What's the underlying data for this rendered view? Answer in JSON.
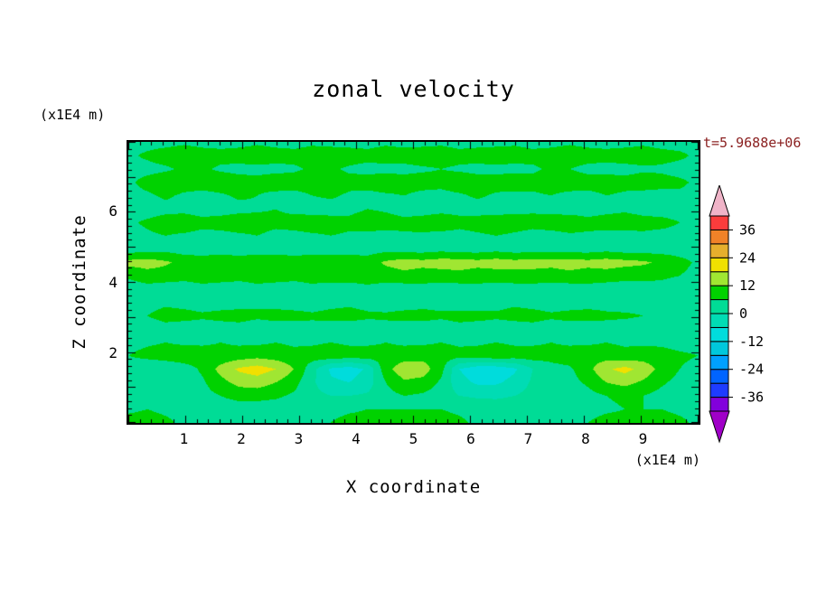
{
  "chart_data": {
    "type": "heatmap",
    "title": "zonal velocity",
    "xlabel": "X coordinate",
    "ylabel": "Z coordinate",
    "x_unit": "(x1E4 m)",
    "y_unit": "(x1E4 m)",
    "time_label": "t=5.9688e+06",
    "time_label_color": "#8b2121",
    "axis_color": "#000000",
    "xlim": [
      0,
      10
    ],
    "zlim": [
      0,
      8
    ],
    "xticks": [
      1,
      2,
      3,
      4,
      5,
      6,
      7,
      8,
      9
    ],
    "zticks": [
      2,
      4,
      6
    ],
    "minor_tick_step": 0.2,
    "levels": [
      -42,
      -36,
      -30,
      -24,
      -18,
      -12,
      -6,
      0,
      6,
      12,
      18,
      24,
      30,
      36,
      42
    ],
    "band_colors": [
      "#8200dc",
      "#1e3cff",
      "#0064ff",
      "#00a0ff",
      "#00c8dc",
      "#00dcdc",
      "#00dcb4",
      "#00dc96",
      "#00d200",
      "#a0e632",
      "#f0e000",
      "#e6af2d",
      "#f08228",
      "#fa3c3c"
    ],
    "below_color": "#a000c8",
    "above_color": "#f0b4c8",
    "cbar_labels": [
      36,
      24,
      12,
      0,
      -12,
      -24,
      -36
    ],
    "grid": [
      [
        4,
        4,
        4,
        5,
        4,
        4,
        4,
        5,
        4,
        4,
        5,
        4,
        4,
        4,
        5,
        4,
        4,
        5,
        4,
        4,
        4,
        5,
        4,
        4,
        5,
        4,
        4,
        4,
        5,
        4,
        4,
        4
      ],
      [
        5,
        7,
        9,
        10,
        9,
        8,
        9,
        10,
        9,
        8,
        9,
        10,
        9,
        8,
        9,
        9,
        10,
        9,
        8,
        9,
        10,
        9,
        8,
        9,
        10,
        9,
        8,
        9,
        9,
        8,
        7,
        5
      ],
      [
        4,
        4,
        5,
        7,
        7,
        5,
        4,
        4,
        4,
        5,
        7,
        7,
        5,
        4,
        4,
        4,
        5,
        6,
        5,
        4,
        4,
        4,
        5,
        7,
        6,
        4,
        4,
        4,
        5,
        5,
        4,
        4
      ],
      [
        5,
        8,
        10,
        9,
        9,
        10,
        9,
        8,
        10,
        9,
        9,
        10,
        8,
        9,
        10,
        9,
        9,
        8,
        10,
        9,
        9,
        10,
        8,
        9,
        10,
        9,
        9,
        8,
        9,
        8,
        7,
        5
      ],
      [
        4,
        5,
        7,
        5,
        4,
        5,
        7,
        6,
        4,
        4,
        6,
        7,
        5,
        4,
        5,
        6,
        4,
        4,
        5,
        7,
        5,
        4,
        5,
        6,
        4,
        4,
        6,
        5,
        4,
        4,
        5,
        4
      ],
      [
        3,
        3,
        4,
        4,
        3,
        3,
        4,
        5,
        6,
        4,
        3,
        3,
        4,
        6,
        5,
        3,
        3,
        4,
        4,
        3,
        3,
        4,
        5,
        4,
        3,
        3,
        4,
        5,
        4,
        3,
        3,
        3
      ],
      [
        5,
        7,
        9,
        10,
        8,
        9,
        10,
        9,
        8,
        9,
        10,
        9,
        8,
        10,
        9,
        8,
        9,
        10,
        8,
        9,
        10,
        9,
        8,
        9,
        10,
        8,
        9,
        9,
        8,
        8,
        6,
        5
      ],
      [
        4,
        5,
        6,
        5,
        4,
        4,
        5,
        6,
        4,
        4,
        5,
        6,
        5,
        4,
        4,
        5,
        5,
        4,
        4,
        5,
        6,
        5,
        4,
        4,
        5,
        5,
        4,
        4,
        5,
        4,
        4,
        3
      ],
      [
        3,
        3,
        4,
        3,
        3,
        4,
        3,
        3,
        4,
        3,
        3,
        4,
        3,
        3,
        4,
        3,
        3,
        4,
        3,
        3,
        4,
        3,
        3,
        4,
        3,
        3,
        4,
        3,
        3,
        3,
        3,
        3
      ],
      [
        14,
        15,
        13,
        10,
        9,
        9,
        9,
        10,
        9,
        9,
        10,
        9,
        10,
        9,
        13,
        15,
        14,
        15,
        15,
        14,
        15,
        14,
        15,
        14,
        15,
        14,
        15,
        14,
        13,
        11,
        8,
        5
      ],
      [
        7,
        9,
        9,
        8,
        9,
        9,
        8,
        9,
        9,
        8,
        9,
        9,
        9,
        10,
        9,
        10,
        9,
        9,
        10,
        9,
        9,
        10,
        9,
        9,
        10,
        9,
        9,
        8,
        8,
        7,
        6,
        4
      ],
      [
        3,
        4,
        3,
        3,
        4,
        3,
        3,
        4,
        3,
        3,
        4,
        3,
        3,
        4,
        3,
        3,
        4,
        3,
        3,
        4,
        3,
        3,
        4,
        3,
        3,
        4,
        3,
        3,
        3,
        4,
        3,
        3
      ],
      [
        3,
        4,
        5,
        4,
        3,
        3,
        4,
        5,
        4,
        3,
        3,
        4,
        5,
        4,
        3,
        3,
        4,
        4,
        3,
        3,
        4,
        5,
        4,
        3,
        3,
        4,
        4,
        3,
        3,
        3,
        3,
        3
      ],
      [
        4,
        6,
        8,
        8,
        7,
        8,
        8,
        7,
        8,
        8,
        7,
        8,
        8,
        7,
        7,
        8,
        8,
        7,
        8,
        8,
        7,
        8,
        8,
        7,
        8,
        8,
        7,
        7,
        6,
        6,
        5,
        4
      ],
      [
        3,
        3,
        4,
        3,
        3,
        3,
        4,
        3,
        3,
        3,
        4,
        3,
        3,
        3,
        4,
        3,
        3,
        3,
        4,
        3,
        3,
        3,
        4,
        3,
        3,
        3,
        4,
        3,
        3,
        3,
        3,
        3
      ],
      [
        4,
        5,
        6,
        5,
        5,
        6,
        5,
        5,
        6,
        5,
        5,
        6,
        5,
        5,
        6,
        5,
        5,
        6,
        5,
        5,
        6,
        5,
        5,
        6,
        5,
        5,
        6,
        5,
        5,
        5,
        4,
        4
      ],
      [
        6,
        8,
        9,
        10,
        9,
        8,
        9,
        10,
        9,
        8,
        9,
        10,
        9,
        9,
        8,
        9,
        10,
        9,
        8,
        9,
        10,
        9,
        9,
        8,
        9,
        10,
        9,
        8,
        9,
        8,
        7,
        6
      ],
      [
        2,
        0,
        1,
        3,
        7,
        14,
        19,
        21,
        18,
        12,
        2,
        -7,
        -9,
        -5,
        10,
        16,
        15,
        8,
        -6,
        -10,
        -10,
        -7,
        0,
        4,
        5,
        10,
        17,
        20,
        16,
        10,
        6,
        4
      ],
      [
        2,
        1,
        2,
        3,
        5,
        10,
        14,
        15,
        12,
        8,
        1,
        -5,
        -6,
        -3,
        6,
        11,
        10,
        5,
        -4,
        -7,
        -7,
        -4,
        1,
        3,
        4,
        7,
        12,
        14,
        11,
        7,
        4,
        3
      ],
      [
        2,
        2,
        2,
        3,
        4,
        6,
        8,
        8,
        7,
        5,
        2,
        0,
        0,
        1,
        4,
        6,
        5,
        3,
        0,
        -1,
        -1,
        0,
        2,
        2,
        3,
        4,
        6,
        7,
        6,
        4,
        3,
        2
      ],
      [
        5,
        6,
        5,
        4,
        3,
        3,
        3,
        3,
        3,
        3,
        3,
        4,
        5,
        6,
        6,
        6,
        6,
        6,
        5,
        4,
        3,
        3,
        3,
        3,
        3,
        4,
        5,
        6,
        6,
        6,
        5,
        4
      ],
      [
        8,
        8,
        7,
        5,
        3,
        3,
        3,
        3,
        3,
        3,
        4,
        6,
        8,
        8,
        8,
        8,
        8,
        8,
        7,
        5,
        3,
        3,
        3,
        3,
        4,
        6,
        8,
        8,
        8,
        8,
        7,
        5
      ]
    ]
  }
}
